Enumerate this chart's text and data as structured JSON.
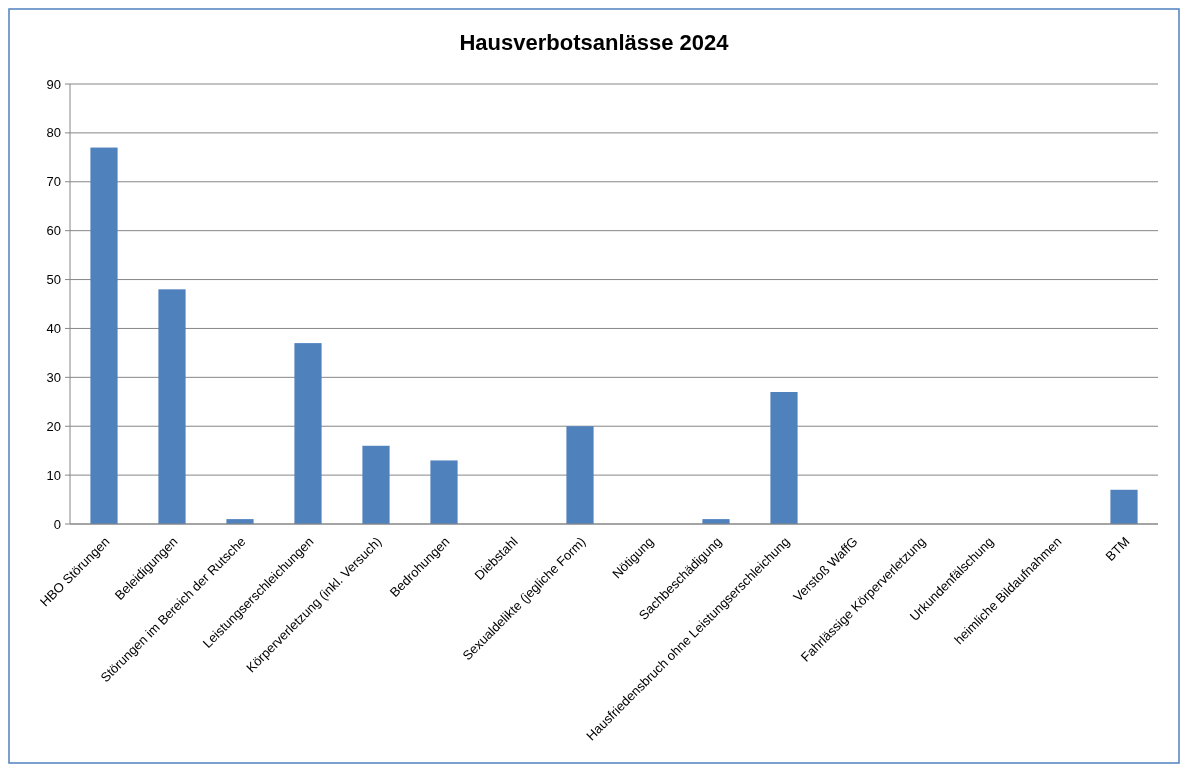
{
  "chart_data": {
    "type": "bar",
    "title": "Hausverbotsanlässe 2024",
    "categories": [
      "HBO Störungen",
      "Beleidigungen",
      "Störungen im Bereich der Rutsche",
      "Leistungserschleichungen",
      "Körperverletzung (inkl. Versuch)",
      "Bedrohungen",
      "Diebstahl",
      "Sexualdelikte (jegliche Form)",
      "Nötigung",
      "Sachbeschädigung",
      "Hausfriedensbruch ohne Leistungserschleichung",
      "Verstoß WaffG",
      "Fahrlässige Körperverletzung",
      "Urkundenfälschung",
      "heimliche Bildaufnahmen",
      "BTM"
    ],
    "values": [
      77,
      48,
      1,
      37,
      16,
      13,
      0,
      20,
      0,
      1,
      27,
      0,
      0,
      0,
      0,
      7
    ],
    "color": "#4f81bd",
    "ylim": [
      0,
      90
    ],
    "yticks": [
      0,
      10,
      20,
      30,
      40,
      50,
      60,
      70,
      80,
      90
    ],
    "grid": "y"
  }
}
